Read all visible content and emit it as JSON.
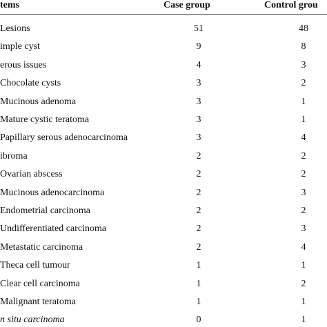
{
  "table": {
    "header": [
      "tems",
      "Case group",
      "Control grou"
    ],
    "rows": [
      [
        "Lesions",
        51,
        48
      ],
      [
        "imple cyst",
        9,
        8
      ],
      [
        "erous issues",
        4,
        3
      ],
      [
        "Chocolate cysts",
        3,
        2
      ],
      [
        "Mucinous adenoma",
        3,
        1
      ],
      [
        "Mature cystic teratoma",
        3,
        1
      ],
      [
        "Papillary serous adenocarcinoma",
        3,
        4
      ],
      [
        "ibroma",
        2,
        2
      ],
      [
        "Ovarian abscess",
        2,
        2
      ],
      [
        "Mucinous adenocarcinoma",
        2,
        3
      ],
      [
        "Endometrial carcinoma",
        2,
        2
      ],
      [
        "Undifferentiated carcinoma",
        2,
        3
      ],
      [
        "Metastatic carcinoma",
        2,
        4
      ],
      [
        "Theca cell tumour",
        1,
        1
      ],
      [
        "Clear cell carcinoma",
        1,
        2
      ],
      [
        "Malignant teratoma",
        1,
        1
      ],
      [
        "n situ carcinoma",
        0,
        1
      ]
    ]
  }
}
